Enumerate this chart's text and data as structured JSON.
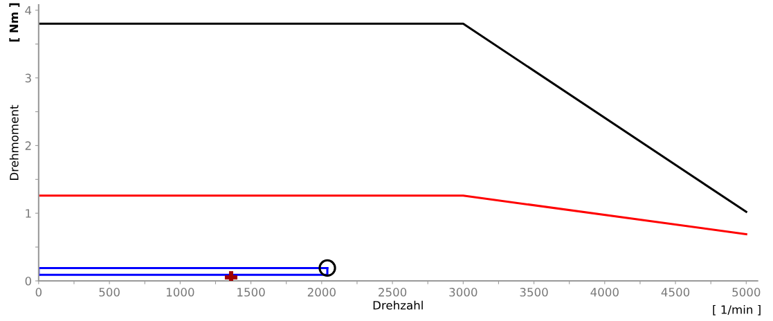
{
  "chart_data": {
    "type": "line",
    "xlabel": "Drehzahl",
    "ylabel": "Drehmoment",
    "annotations": [
      "[ Nm ]",
      "[ 1/min ]"
    ],
    "xlim": [
      0,
      5080
    ],
    "ylim": [
      0,
      4.08
    ],
    "xticks": [
      0,
      {
        "value": 250,
        "label": null
      },
      500,
      {
        "value": 750,
        "label": null
      },
      1000,
      {
        "value": 1250,
        "label": null
      },
      1500,
      {
        "value": 1750,
        "label": null
      },
      2000,
      {
        "value": 2250,
        "label": null
      },
      2500,
      {
        "value": 2750,
        "label": null
      },
      3000,
      {
        "value": 3250,
        "label": null
      },
      3500,
      {
        "value": 3750,
        "label": null
      },
      4000,
      {
        "value": 4250,
        "label": null
      },
      4500,
      {
        "value": 4750,
        "label": null
      },
      5000
    ],
    "yticks": [
      0,
      {
        "value": 0.5,
        "label": null
      },
      1,
      {
        "value": 1.5,
        "label": null
      },
      2,
      {
        "value": 2.5,
        "label": null
      },
      3,
      {
        "value": 3.5,
        "label": null
      },
      4
    ],
    "grid": false,
    "legend": false,
    "marker": "none",
    "line_style": "solid",
    "series": [
      {
        "color": "#000000",
        "x": [
          0,
          3000,
          5000
        ],
        "values": [
          3.8,
          3.8,
          1.02
        ]
      },
      {
        "color": "#ff0000",
        "x": [
          0,
          3000,
          5000
        ],
        "values": [
          1.26,
          1.26,
          0.69
        ]
      },
      {
        "color": "#0000ff",
        "x": [
          0,
          0,
          2040
        ],
        "values": [
          0.09,
          0.19,
          0.19
        ]
      },
      {
        "color": "#0000ff",
        "x": [
          0,
          2040,
          2040
        ],
        "values": [
          0.09,
          0.09,
          0.19
        ]
      },
      {
        "type": "scatter",
        "color": "#000000",
        "marker": "circle",
        "x": [
          2040
        ],
        "values": [
          0.19
        ]
      },
      {
        "type": "scatter",
        "color": "#a00000",
        "marker": "cross",
        "x": [
          1360
        ],
        "values": [
          0.05
        ]
      }
    ]
  }
}
